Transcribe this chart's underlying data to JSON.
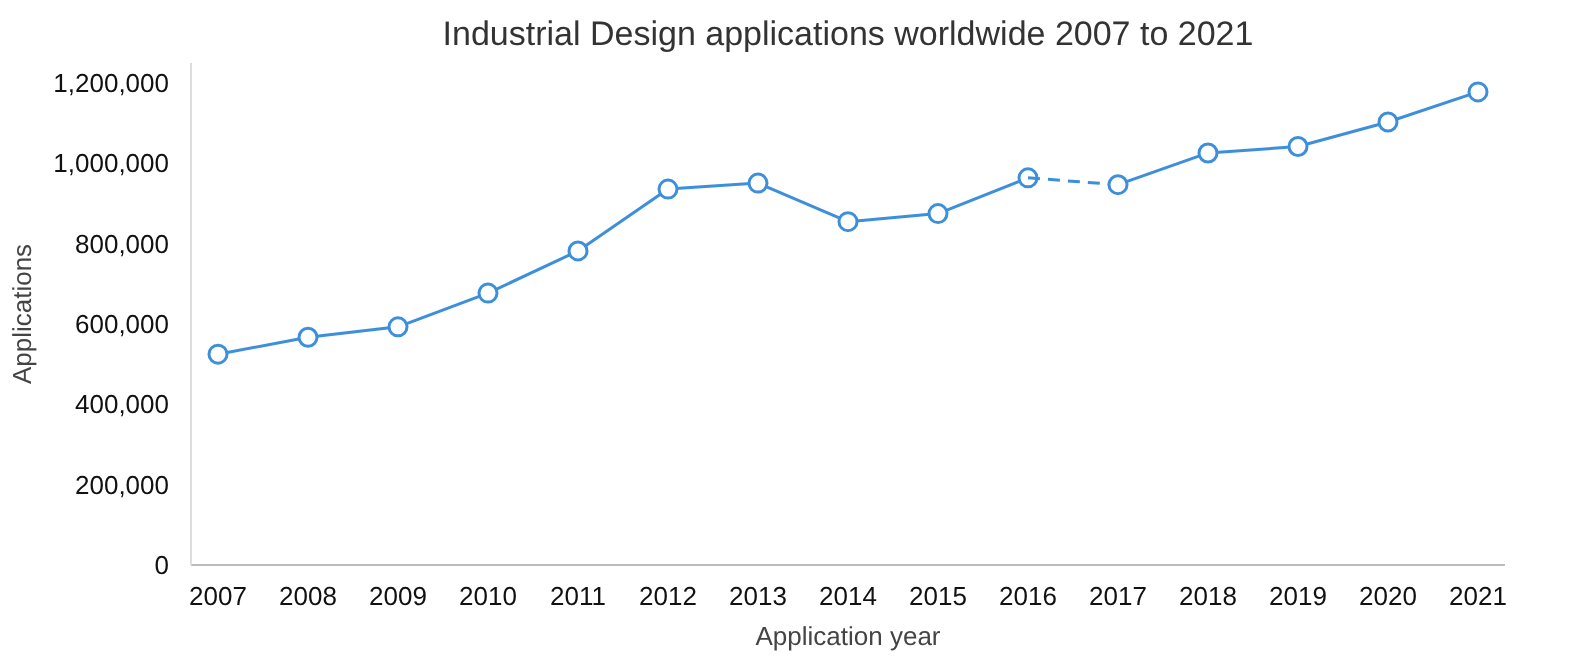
{
  "chart_data": {
    "type": "line",
    "title": "Industrial Design applications worldwide 2007 to 2021",
    "xlabel": "Application year",
    "ylabel": "Applications",
    "categories": [
      "2007",
      "2008",
      "2009",
      "2010",
      "2011",
      "2012",
      "2013",
      "2014",
      "2015",
      "2016",
      "2017",
      "2018",
      "2019",
      "2020",
      "2021"
    ],
    "series": [
      {
        "color": "#3d8fdb",
        "values": [
          525000,
          567000,
          593000,
          677000,
          782000,
          936000,
          951000,
          855000,
          875000,
          964000,
          null,
          null,
          null,
          null,
          null
        ]
      },
      {
        "color": "#3d8fdb",
        "line_style": "dashed",
        "marker": "none",
        "values": [
          null,
          null,
          null,
          null,
          null,
          null,
          null,
          null,
          null,
          964000,
          947000,
          null,
          null,
          null,
          null
        ]
      },
      {
        "color": "#3d8fdb",
        "values": [
          null,
          null,
          null,
          null,
          null,
          null,
          null,
          null,
          null,
          null,
          947000,
          1026000,
          1042000,
          1103000,
          1178000
        ]
      }
    ],
    "ylim": [
      0,
      1250000
    ],
    "yticks": [
      {
        "value": 0,
        "label": "0"
      },
      {
        "value": 200000,
        "label": "200,000"
      },
      {
        "value": 400000,
        "label": "400,000"
      },
      {
        "value": 600000,
        "label": "600,000"
      },
      {
        "value": 800000,
        "label": "800,000"
      },
      {
        "value": 1000000,
        "label": "1,000,000"
      },
      {
        "value": 1200000,
        "label": "1,200,000"
      }
    ],
    "grid": false,
    "marker": "circle",
    "line_style": "solid"
  }
}
